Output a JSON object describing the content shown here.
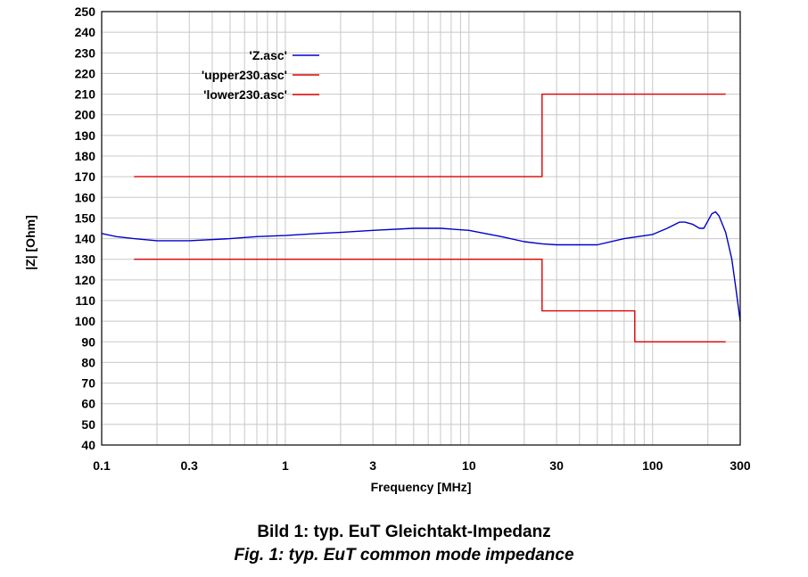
{
  "chart_data": {
    "type": "line",
    "xlabel": "Frequency [MHz]",
    "ylabel": "|Z| [Ohm]",
    "x_scale": "log",
    "xlim": [
      0.1,
      300
    ],
    "ylim": [
      40,
      250
    ],
    "x_ticks": [
      {
        "value": 0.1,
        "label": "0.1"
      },
      {
        "value": 0.3,
        "label": "0.3"
      },
      {
        "value": 1,
        "label": "1"
      },
      {
        "value": 3,
        "label": "3"
      },
      {
        "value": 10,
        "label": "10"
      },
      {
        "value": 30,
        "label": "30"
      },
      {
        "value": 100,
        "label": "100"
      },
      {
        "value": 300,
        "label": "300"
      }
    ],
    "y_ticks": [
      40,
      50,
      60,
      70,
      80,
      90,
      100,
      110,
      120,
      130,
      140,
      150,
      160,
      170,
      180,
      190,
      200,
      210,
      220,
      230,
      240,
      250
    ],
    "grid": true,
    "legend_position": "top-left",
    "series": [
      {
        "name": "'Z.asc'",
        "color": "#0000cc",
        "points": [
          [
            0.1,
            142.5
          ],
          [
            0.12,
            141
          ],
          [
            0.15,
            140
          ],
          [
            0.2,
            139
          ],
          [
            0.3,
            139
          ],
          [
            0.5,
            140
          ],
          [
            0.7,
            141
          ],
          [
            1,
            141.5
          ],
          [
            1.5,
            142.5
          ],
          [
            2,
            143
          ],
          [
            3,
            144
          ],
          [
            5,
            145
          ],
          [
            7,
            145
          ],
          [
            10,
            144
          ],
          [
            15,
            141
          ],
          [
            20,
            138.5
          ],
          [
            25,
            137.5
          ],
          [
            30,
            137
          ],
          [
            50,
            137
          ],
          [
            70,
            140
          ],
          [
            100,
            142
          ],
          [
            120,
            145
          ],
          [
            140,
            148
          ],
          [
            150,
            148
          ],
          [
            165,
            147
          ],
          [
            180,
            145
          ],
          [
            190,
            145
          ],
          [
            210,
            152
          ],
          [
            220,
            153
          ],
          [
            230,
            151
          ],
          [
            250,
            143
          ],
          [
            270,
            130
          ],
          [
            285,
            115
          ],
          [
            300,
            100
          ]
        ]
      },
      {
        "name": "'upper230.asc'",
        "color": "#dd0000",
        "points": [
          [
            0.15,
            170
          ],
          [
            25,
            170
          ],
          [
            25,
            210
          ],
          [
            250,
            210
          ]
        ]
      },
      {
        "name": "'lower230.asc'",
        "color": "#dd0000",
        "points": [
          [
            0.15,
            130
          ],
          [
            25,
            130
          ],
          [
            25,
            105
          ],
          [
            80,
            105
          ],
          [
            80,
            90
          ],
          [
            250,
            90
          ]
        ]
      }
    ]
  },
  "caption": {
    "german": "Bild 1: typ. EuT Gleichtakt-Impedanz",
    "english": "Fig. 1: typ. EuT common mode impedance"
  }
}
